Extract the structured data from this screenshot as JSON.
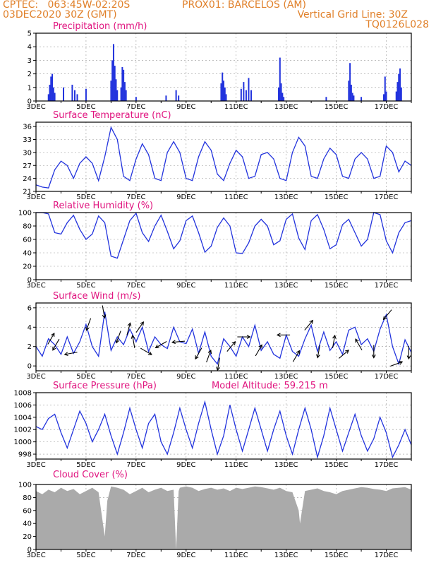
{
  "header": {
    "line1_left": "CPTEC:   063:45W-02:20S",
    "line1_right": "PROX01: BARCELOS (AM)",
    "line2_left": "03DEC2020 30Z (GMT)",
    "line2_right": "Vertical Grid Line: 30Z",
    "line3_right": "TQ0126L028"
  },
  "colors": {
    "line": "#2233dd",
    "bar": "#2233dd",
    "title": "#e0147f",
    "header": "#e0802a",
    "cloud": "#aaaaaa"
  },
  "x_axis": {
    "start_day": 3,
    "end_day": 18,
    "tick_labels": [
      "3DEC",
      "5DEC",
      "7DEC",
      "9DEC",
      "11DEC",
      "13DEC",
      "15DEC",
      "17DEC"
    ],
    "tick_days": [
      3,
      5,
      7,
      9,
      11,
      13,
      15,
      17
    ]
  },
  "chart_data": [
    {
      "type": "bar",
      "title": "Precipitation (mm/h)",
      "ylim": [
        0,
        5
      ],
      "yticks": [
        0,
        1,
        2,
        3,
        4,
        5
      ],
      "x": [
        3.5,
        3.55,
        3.6,
        3.65,
        3.7,
        3.75,
        4.1,
        4.45,
        4.55,
        4.65,
        5.0,
        6.0,
        6.05,
        6.1,
        6.15,
        6.2,
        6.25,
        6.4,
        6.45,
        6.5,
        6.55,
        6.6,
        7.0,
        8.2,
        8.6,
        8.7,
        10.4,
        10.45,
        10.5,
        10.55,
        10.6,
        11.2,
        11.3,
        11.4,
        11.5,
        11.6,
        12.7,
        12.75,
        12.8,
        12.85,
        12.9,
        14.6,
        15.5,
        15.55,
        15.6,
        15.65,
        15.7,
        16.0,
        16.9,
        16.95,
        17.0,
        17.4,
        17.45,
        17.5,
        17.55,
        17.6
      ],
      "values": [
        0.5,
        1.2,
        1.8,
        2.0,
        1.0,
        0.6,
        1.0,
        1.2,
        0.8,
        0.5,
        0.9,
        1.5,
        3.0,
        4.2,
        2.6,
        1.6,
        0.8,
        1.0,
        2.5,
        2.3,
        1.4,
        0.8,
        0.3,
        0.4,
        0.8,
        0.4,
        1.3,
        2.1,
        1.5,
        1.0,
        0.5,
        0.9,
        1.4,
        0.8,
        1.7,
        0.8,
        1.0,
        3.2,
        1.3,
        0.6,
        0.3,
        0.3,
        1.5,
        2.8,
        1.2,
        0.6,
        0.4,
        0.3,
        0.5,
        1.8,
        0.7,
        0.7,
        1.4,
        2.0,
        2.4,
        1.0
      ]
    },
    {
      "type": "line",
      "title": "Surface Temperature (nC)",
      "ylim": [
        21,
        37
      ],
      "yticks": [
        21,
        24,
        27,
        30,
        33,
        36
      ],
      "x": [
        3.0,
        3.25,
        3.5,
        3.75,
        4.0,
        4.25,
        4.5,
        4.75,
        5.0,
        5.25,
        5.5,
        5.75,
        6.0,
        6.25,
        6.5,
        6.75,
        7.0,
        7.25,
        7.5,
        7.75,
        8.0,
        8.25,
        8.5,
        8.75,
        9.0,
        9.25,
        9.5,
        9.75,
        10.0,
        10.25,
        10.5,
        10.75,
        11.0,
        11.25,
        11.5,
        11.75,
        12.0,
        12.25,
        12.5,
        12.75,
        13.0,
        13.25,
        13.5,
        13.75,
        14.0,
        14.25,
        14.5,
        14.75,
        15.0,
        15.25,
        15.5,
        15.75,
        16.0,
        16.25,
        16.5,
        16.75,
        17.0,
        17.25,
        17.5,
        17.75,
        18.0
      ],
      "values": [
        22.5,
        22.0,
        21.8,
        26.0,
        28.0,
        27.0,
        24.0,
        27.5,
        29.0,
        27.5,
        23.5,
        29.0,
        35.8,
        33.0,
        24.5,
        23.5,
        28.5,
        32.0,
        29.5,
        24.0,
        23.5,
        30.0,
        32.5,
        30.0,
        24.0,
        23.5,
        29.0,
        32.5,
        30.5,
        25.0,
        23.5,
        27.5,
        30.5,
        29.0,
        24.0,
        24.5,
        29.5,
        30.0,
        28.5,
        24.0,
        23.5,
        30.0,
        33.5,
        31.5,
        24.5,
        24.0,
        28.5,
        31.0,
        29.5,
        24.5,
        24.0,
        28.5,
        30.0,
        28.5,
        24.0,
        24.5,
        31.5,
        30.0,
        25.5,
        28.0,
        27.0
      ]
    },
    {
      "type": "line",
      "title": "Relative Humidity (%)",
      "ylim": [
        0,
        100
      ],
      "yticks": [
        0,
        20,
        40,
        60,
        80,
        100
      ],
      "x": [
        3.0,
        3.25,
        3.5,
        3.75,
        4.0,
        4.25,
        4.5,
        4.75,
        5.0,
        5.25,
        5.5,
        5.75,
        6.0,
        6.25,
        6.5,
        6.75,
        7.0,
        7.25,
        7.5,
        7.75,
        8.0,
        8.25,
        8.5,
        8.75,
        9.0,
        9.25,
        9.5,
        9.75,
        10.0,
        10.25,
        10.5,
        10.75,
        11.0,
        11.25,
        11.5,
        11.75,
        12.0,
        12.25,
        12.5,
        12.75,
        13.0,
        13.25,
        13.5,
        13.75,
        14.0,
        14.25,
        14.5,
        14.75,
        15.0,
        15.25,
        15.5,
        15.75,
        16.0,
        16.25,
        16.5,
        16.75,
        17.0,
        17.25,
        17.5,
        17.75,
        18.0
      ],
      "values": [
        100,
        100,
        98,
        70,
        68,
        85,
        96,
        75,
        60,
        68,
        95,
        85,
        35,
        32,
        60,
        88,
        99,
        70,
        57,
        80,
        96,
        72,
        46,
        58,
        88,
        95,
        70,
        41,
        50,
        78,
        92,
        80,
        40,
        39,
        55,
        80,
        90,
        80,
        52,
        58,
        90,
        98,
        62,
        45,
        88,
        97,
        75,
        46,
        52,
        82,
        90,
        70,
        50,
        60,
        100,
        97,
        58,
        40,
        70,
        85,
        88
      ]
    },
    {
      "type": "line",
      "title": "Surface Wind (m/s)",
      "ylim": [
        -0.5,
        6.5
      ],
      "yticks": [
        0,
        2,
        4,
        6
      ],
      "x": [
        3.0,
        3.25,
        3.5,
        3.75,
        4.0,
        4.25,
        4.5,
        4.75,
        5.0,
        5.25,
        5.5,
        5.75,
        6.0,
        6.25,
        6.5,
        6.75,
        7.0,
        7.25,
        7.5,
        7.75,
        8.0,
        8.25,
        8.5,
        8.75,
        9.0,
        9.25,
        9.5,
        9.75,
        10.0,
        10.25,
        10.5,
        10.75,
        11.0,
        11.25,
        11.5,
        11.75,
        12.0,
        12.25,
        12.5,
        12.75,
        13.0,
        13.25,
        13.5,
        13.75,
        14.0,
        14.25,
        14.5,
        14.75,
        15.0,
        15.25,
        15.5,
        15.75,
        16.0,
        16.25,
        16.5,
        16.75,
        17.0,
        17.25,
        17.5,
        17.75,
        18.0
      ],
      "values": [
        2.0,
        1.0,
        2.8,
        2.2,
        1.2,
        3.0,
        1.3,
        2.5,
        4.3,
        2.0,
        1.0,
        5.6,
        1.6,
        3.0,
        2.2,
        3.8,
        2.5,
        4.0,
        1.5,
        3.0,
        2.2,
        1.8,
        4.0,
        2.5,
        2.3,
        3.8,
        1.3,
        3.5,
        1.0,
        0.2,
        2.8,
        2.0,
        1.0,
        3.0,
        2.0,
        4.2,
        1.6,
        2.5,
        1.2,
        0.8,
        3.2,
        1.5,
        1.0,
        2.8,
        4.2,
        1.5,
        3.5,
        1.6,
        2.5,
        1.2,
        3.7,
        4.0,
        2.2,
        2.8,
        1.5,
        3.8,
        5.3,
        2.0,
        0.2,
        2.7,
        1.4
      ]
    },
    {
      "type": "line",
      "title": "Surface Pressure (hPa)",
      "ylim": [
        997.2,
        1008
      ],
      "yticks": [
        998,
        1000,
        1002,
        1004,
        1006,
        1008
      ],
      "x": [
        3.0,
        3.25,
        3.5,
        3.75,
        4.0,
        4.25,
        4.5,
        4.75,
        5.0,
        5.25,
        5.5,
        5.75,
        6.0,
        6.25,
        6.5,
        6.75,
        7.0,
        7.25,
        7.5,
        7.75,
        8.0,
        8.25,
        8.5,
        8.75,
        9.0,
        9.25,
        9.5,
        9.75,
        10.0,
        10.25,
        10.5,
        10.75,
        11.0,
        11.25,
        11.5,
        11.75,
        12.0,
        12.25,
        12.5,
        12.75,
        13.0,
        13.25,
        13.5,
        13.75,
        14.0,
        14.25,
        14.5,
        14.75,
        15.0,
        15.25,
        15.5,
        15.75,
        16.0,
        16.25,
        16.5,
        16.75,
        17.0,
        17.25,
        17.5,
        17.75,
        18.0
      ],
      "values": [
        1002.5,
        1002.0,
        1003.8,
        1004.5,
        1001.5,
        999.0,
        1002.0,
        1005.0,
        1003.0,
        1000.0,
        1002.0,
        1004.5,
        1001.0,
        998.0,
        1001.5,
        1005.5,
        1002.0,
        999.0,
        1003.0,
        1004.5,
        1000.0,
        998.0,
        1001.5,
        1005.5,
        1002.0,
        999.0,
        1003.0,
        1006.5,
        1002.0,
        998.0,
        1001.0,
        1006.0,
        1002.0,
        998.5,
        1002.0,
        1005.5,
        1002.0,
        998.5,
        1002.0,
        1005.0,
        1001.0,
        998.0,
        1002.0,
        1005.5,
        1002.0,
        997.5,
        1001.0,
        1005.5,
        1002.0,
        998.5,
        1001.5,
        1004.5,
        1001.0,
        998.5,
        1000.5,
        1004.0,
        1001.5,
        997.5,
        999.5,
        1002.0,
        999.5
      ],
      "annotation": "Model Altitude: 59.215 m"
    },
    {
      "type": "area",
      "title": "Cloud Cover (%)",
      "ylim": [
        0,
        100
      ],
      "yticks": [
        0,
        20,
        40,
        60,
        80,
        100
      ],
      "x": [
        3.0,
        3.25,
        3.5,
        3.75,
        4.0,
        4.25,
        4.5,
        4.75,
        5.0,
        5.25,
        5.5,
        5.75,
        5.85,
        6.0,
        6.25,
        6.5,
        6.75,
        7.0,
        7.25,
        7.5,
        7.75,
        8.0,
        8.25,
        8.5,
        8.6,
        8.7,
        8.75,
        9.0,
        9.25,
        9.5,
        9.75,
        10.0,
        10.25,
        10.5,
        10.75,
        11.0,
        11.25,
        11.5,
        11.75,
        12.0,
        12.25,
        12.5,
        12.75,
        13.0,
        13.25,
        13.5,
        13.55,
        13.75,
        14.0,
        14.25,
        14.5,
        14.75,
        15.0,
        15.25,
        15.5,
        15.75,
        16.0,
        16.25,
        16.5,
        16.75,
        17.0,
        17.25,
        17.5,
        17.75,
        18.0
      ],
      "values": [
        90,
        85,
        92,
        88,
        95,
        90,
        93,
        85,
        90,
        95,
        88,
        20,
        75,
        97,
        95,
        92,
        85,
        90,
        95,
        88,
        92,
        95,
        90,
        92,
        0,
        90,
        95,
        97,
        95,
        90,
        93,
        95,
        92,
        94,
        90,
        95,
        93,
        95,
        97,
        96,
        94,
        92,
        95,
        90,
        88,
        60,
        40,
        90,
        92,
        94,
        90,
        88,
        85,
        90,
        92,
        94,
        96,
        95,
        93,
        92,
        90,
        94,
        95,
        96,
        92
      ]
    }
  ],
  "wind_arrows": [
    {
      "day": 3.6,
      "dir_deg": 30
    },
    {
      "day": 3.8,
      "dir_deg": 210
    },
    {
      "day": 4.4,
      "dir_deg": 260
    },
    {
      "day": 5.1,
      "dir_deg": 200
    },
    {
      "day": 5.7,
      "dir_deg": 170
    },
    {
      "day": 6.3,
      "dir_deg": 200
    },
    {
      "day": 6.7,
      "dir_deg": 15
    },
    {
      "day": 6.9,
      "dir_deg": 350
    },
    {
      "day": 7.15,
      "dir_deg": 35
    },
    {
      "day": 7.4,
      "dir_deg": 120
    },
    {
      "day": 8.0,
      "dir_deg": 240
    },
    {
      "day": 8.7,
      "dir_deg": 265
    },
    {
      "day": 9.5,
      "dir_deg": 210
    },
    {
      "day": 9.9,
      "dir_deg": 20
    },
    {
      "day": 10.3,
      "dir_deg": 190
    },
    {
      "day": 10.8,
      "dir_deg": 40
    },
    {
      "day": 11.3,
      "dir_deg": 90
    },
    {
      "day": 11.9,
      "dir_deg": 30
    },
    {
      "day": 12.9,
      "dir_deg": 270
    },
    {
      "day": 13.4,
      "dir_deg": 30
    },
    {
      "day": 13.9,
      "dir_deg": 40
    },
    {
      "day": 14.3,
      "dir_deg": 190
    },
    {
      "day": 14.9,
      "dir_deg": 10
    },
    {
      "day": 15.3,
      "dir_deg": 50
    },
    {
      "day": 15.9,
      "dir_deg": 330
    },
    {
      "day": 16.5,
      "dir_deg": 180
    },
    {
      "day": 17.05,
      "dir_deg": 220
    },
    {
      "day": 17.4,
      "dir_deg": 70
    },
    {
      "day": 17.9,
      "dir_deg": 180
    }
  ]
}
